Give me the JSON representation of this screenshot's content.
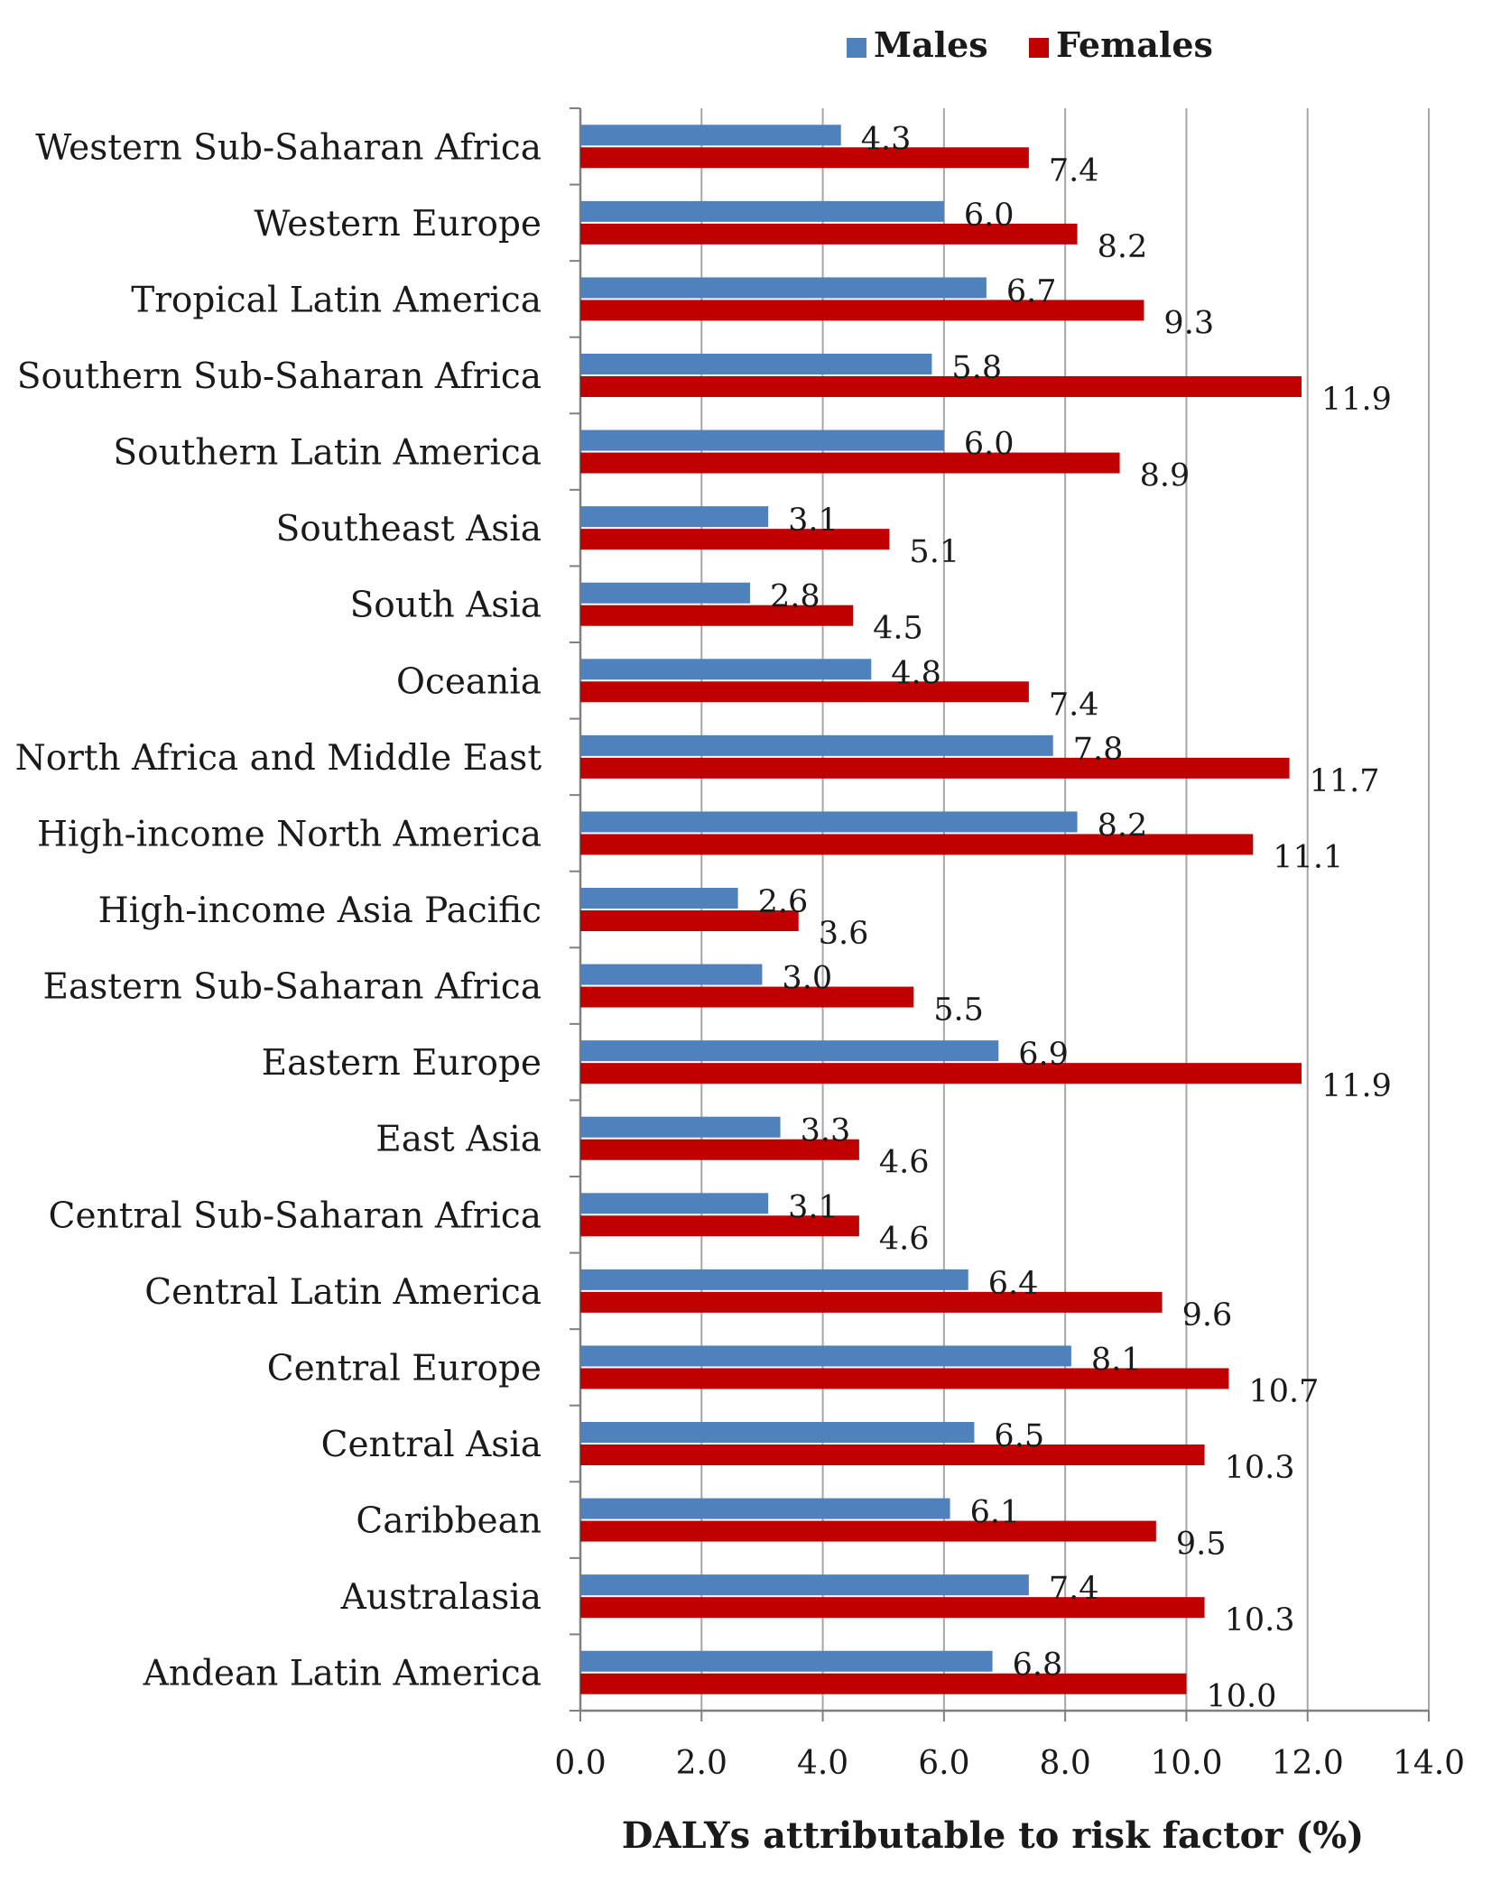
{
  "chart_data": {
    "type": "bar",
    "orientation": "horizontal",
    "title": "",
    "xlabel": "DALYs attributable to risk factor (%)",
    "ylabel": "",
    "xlim": [
      0,
      14
    ],
    "xticks": [
      "0.0",
      "2.0",
      "4.0",
      "6.0",
      "8.0",
      "10.0",
      "12.0",
      "14.0"
    ],
    "grid": true,
    "legend_position": "top-right",
    "categories": [
      "Western Sub-Saharan Africa",
      "Western Europe",
      "Tropical Latin America",
      "Southern Sub-Saharan Africa",
      "Southern Latin America",
      "Southeast Asia",
      "South Asia",
      "Oceania",
      "North Africa and Middle East",
      "High-income North America",
      "High-income Asia Pacific",
      "Eastern Sub-Saharan Africa",
      "Eastern Europe",
      "East Asia",
      "Central Sub-Saharan Africa",
      "Central Latin America",
      "Central Europe",
      "Central Asia",
      "Caribbean",
      "Australasia",
      "Andean Latin America"
    ],
    "series": [
      {
        "name": "Males",
        "color": "#4f81bd",
        "values": [
          4.3,
          6.0,
          6.7,
          5.8,
          6.0,
          3.1,
          2.8,
          4.8,
          7.8,
          8.2,
          2.6,
          3.0,
          6.9,
          3.3,
          3.1,
          6.4,
          8.1,
          6.5,
          6.1,
          7.4,
          6.8
        ],
        "labels": [
          "4.3",
          "6.0",
          "6.7",
          "5.8",
          "6.0",
          "3.1",
          "2.8",
          "4.8",
          "7.8",
          "8.2",
          "2.6",
          "3.0",
          "6.9",
          "3.3",
          "3.1",
          "6.4",
          "8.1",
          "6.5",
          "6.1",
          "7.4",
          "6.8"
        ]
      },
      {
        "name": "Females",
        "color": "#c00000",
        "values": [
          7.4,
          8.2,
          9.3,
          11.9,
          8.9,
          5.1,
          4.5,
          7.4,
          11.7,
          11.1,
          3.6,
          5.5,
          11.9,
          4.6,
          4.6,
          9.6,
          10.7,
          10.3,
          9.5,
          10.3,
          10.0
        ],
        "labels": [
          "7.4",
          "8.2",
          "9.3",
          "11.9",
          "8.9",
          "5.1",
          "4.5",
          "7.4",
          "11.7",
          "11.1",
          "3.6",
          "5.5",
          "11.9",
          "4.6",
          "4.6",
          "9.6",
          "10.7",
          "10.3",
          "9.5",
          "10.3",
          "10.0"
        ]
      }
    ]
  },
  "colors": {
    "grid": "#a6a6a6",
    "axis": "#808080",
    "text": "#1a1a1a"
  }
}
